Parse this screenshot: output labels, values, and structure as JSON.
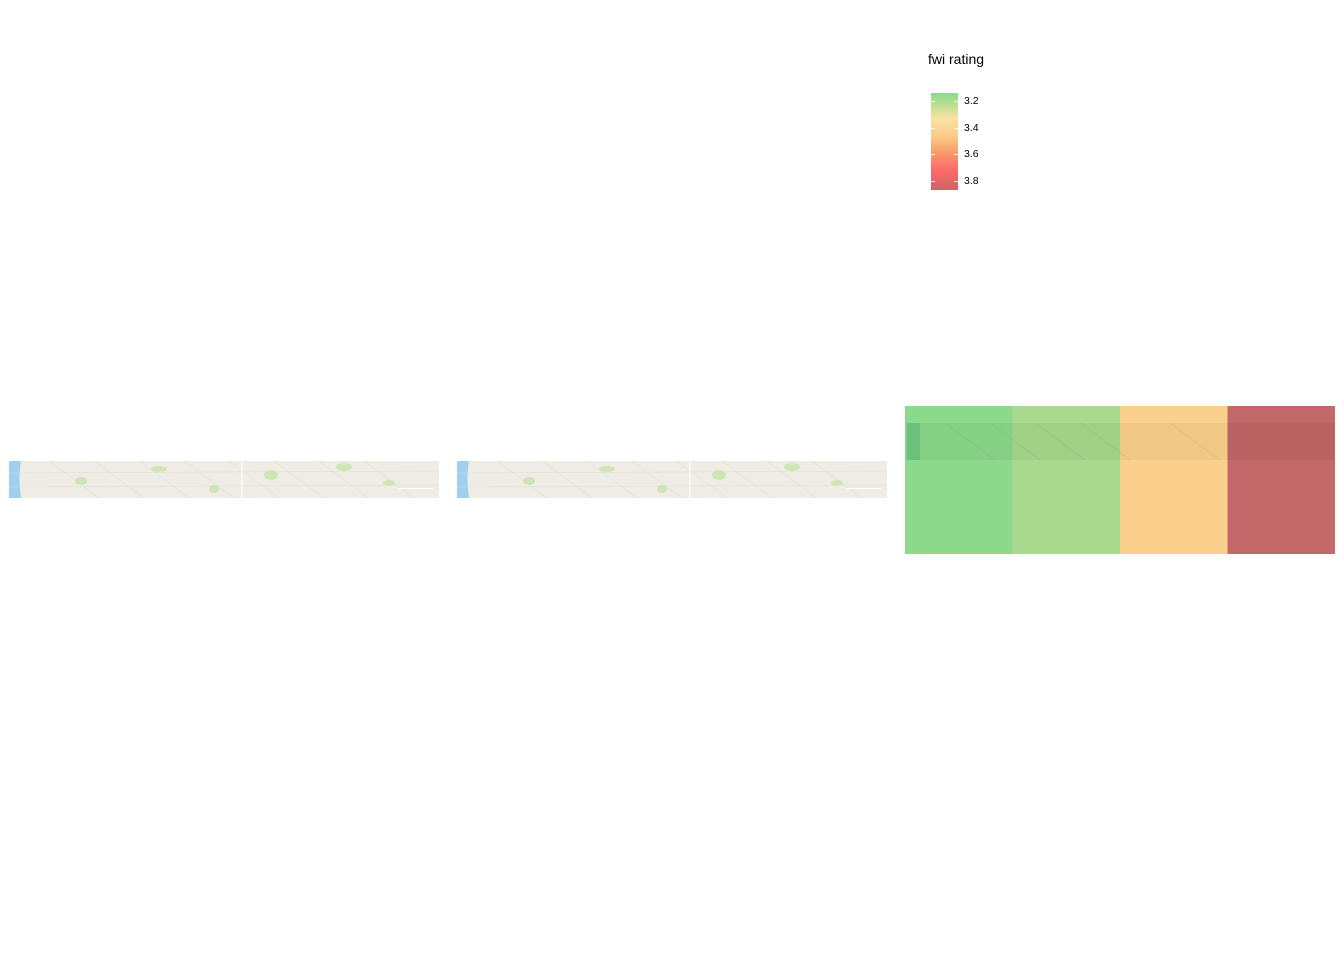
{
  "legend": {
    "title": "fwi rating",
    "ticks": [
      "3.2",
      "3.4",
      "3.6",
      "3.8"
    ],
    "palette": [
      "#8cd98c",
      "#b7df8f",
      "#f9e3a3",
      "#fcca88",
      "#f79a6a",
      "#ff6868",
      "#c96668"
    ]
  },
  "fill_tiles": [
    {
      "color": "#8cd98c"
    },
    {
      "color": "#a8d98c"
    },
    {
      "color": "#fbd08c"
    },
    {
      "color": "#c26868"
    }
  ],
  "basemap_colors": {
    "land": "#eeece4",
    "water": "#9fd0ef",
    "park": "#cfe6b4",
    "road": "#ffffff"
  }
}
